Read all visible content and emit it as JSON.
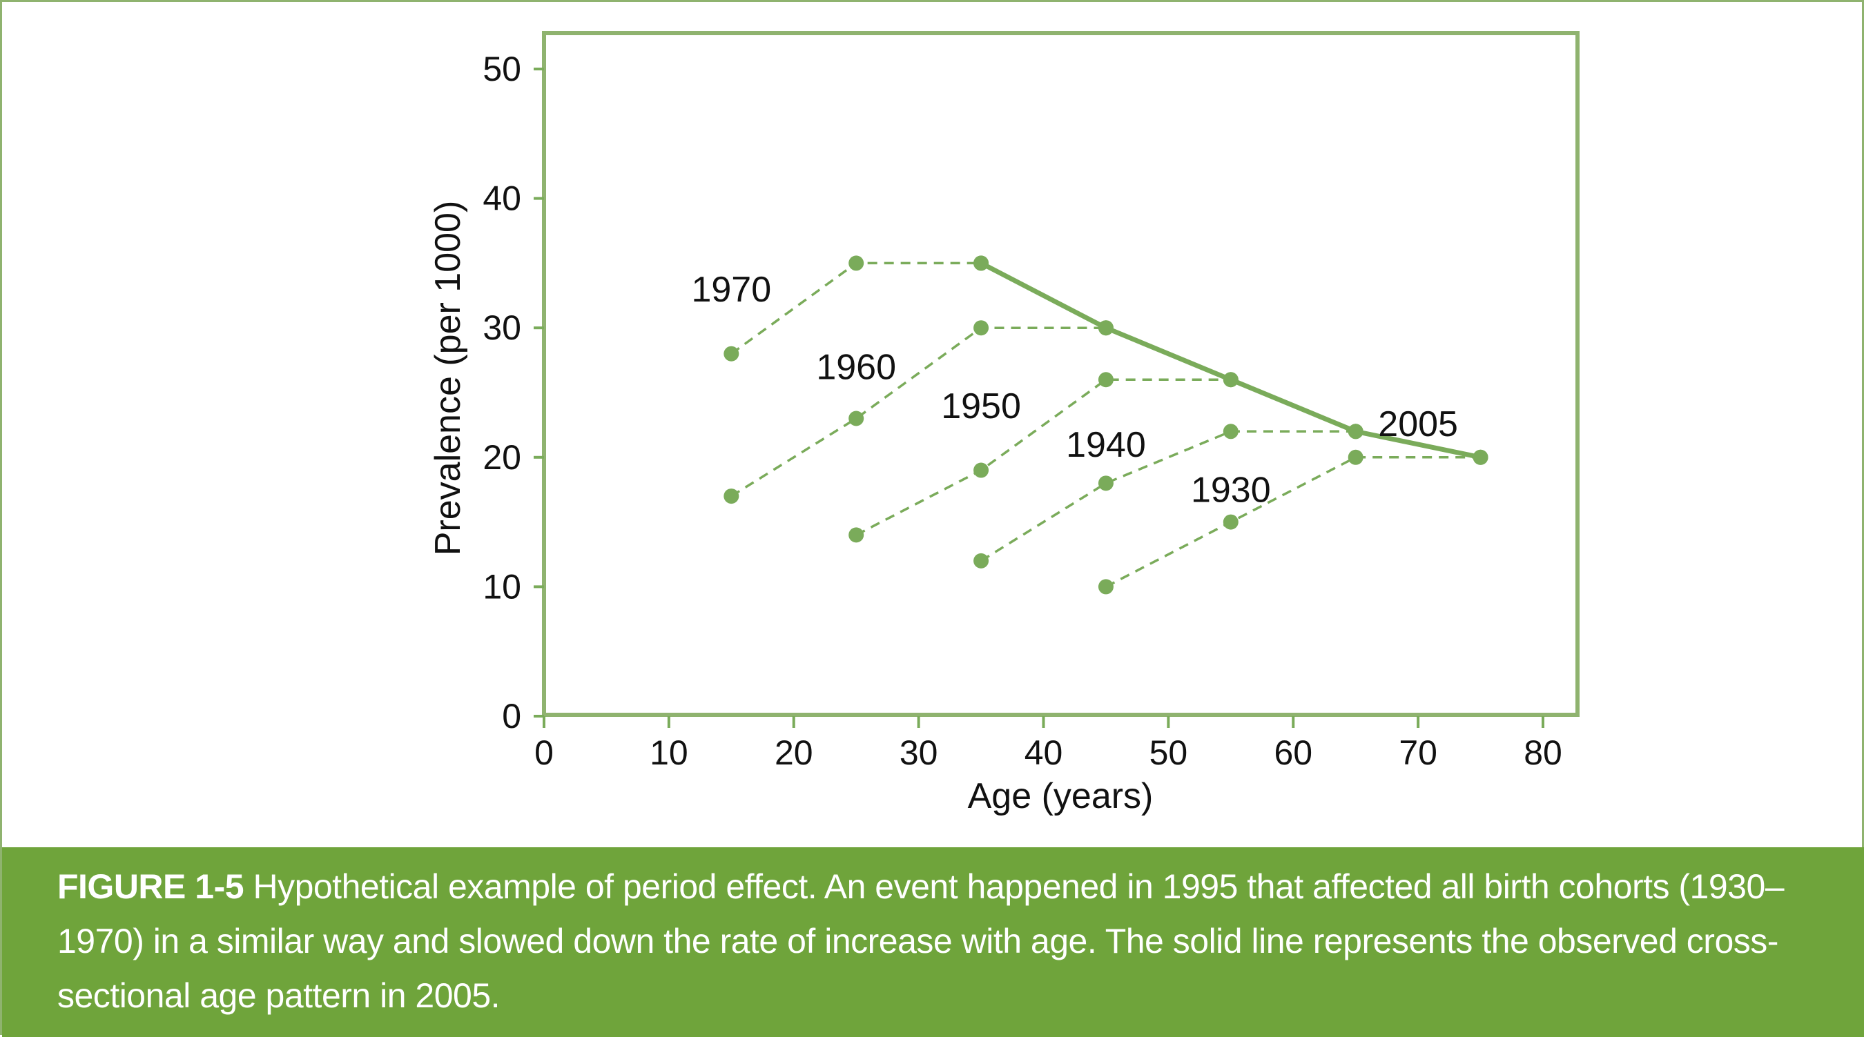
{
  "chart_data": {
    "type": "line",
    "xlabel": "Age (years)",
    "ylabel": "Prevalence (per 1000)",
    "xlim": [
      0,
      80
    ],
    "ylim": [
      0,
      50
    ],
    "xticks": [
      0,
      10,
      20,
      30,
      40,
      50,
      60,
      70,
      80
    ],
    "yticks": [
      0,
      10,
      20,
      30,
      40,
      50
    ],
    "grid": false,
    "colors": {
      "series": "#7aab5a",
      "frame": "#8fb36f"
    },
    "series": [
      {
        "name": "1970",
        "style": "dashed",
        "x": [
          15,
          25,
          35
        ],
        "y": [
          28,
          35,
          35
        ]
      },
      {
        "name": "1960",
        "style": "dashed",
        "x": [
          15,
          25,
          35,
          45
        ],
        "y": [
          17,
          23,
          30,
          30
        ]
      },
      {
        "name": "1950",
        "style": "dashed",
        "x": [
          25,
          35,
          45,
          55
        ],
        "y": [
          14,
          19,
          26,
          26
        ]
      },
      {
        "name": "1940",
        "style": "dashed",
        "x": [
          35,
          45,
          55,
          65
        ],
        "y": [
          12,
          18,
          22,
          22
        ]
      },
      {
        "name": "1930",
        "style": "dashed",
        "x": [
          45,
          55,
          65,
          75
        ],
        "y": [
          10,
          15,
          20,
          20
        ]
      },
      {
        "name": "2005",
        "style": "solid",
        "x": [
          35,
          45,
          55,
          65,
          75
        ],
        "y": [
          35,
          30,
          26,
          22,
          20
        ]
      }
    ],
    "annotations": [
      {
        "text": "1970",
        "x": 15,
        "y": 33
      },
      {
        "text": "1960",
        "x": 25,
        "y": 27
      },
      {
        "text": "1950",
        "x": 35,
        "y": 24
      },
      {
        "text": "1940",
        "x": 45,
        "y": 21
      },
      {
        "text": "1930",
        "x": 55,
        "y": 17.5
      },
      {
        "text": "2005",
        "x": 70,
        "y": 22.6
      }
    ]
  },
  "caption": {
    "label": "FIGURE 1-5",
    "text": " Hypothetical example of period effect. An event happened in 1995 that affected all birth cohorts (1930–1970) in a similar way and slowed down the rate of increase with age. The solid line represents the observed cross-sectional age pattern in 2005."
  }
}
